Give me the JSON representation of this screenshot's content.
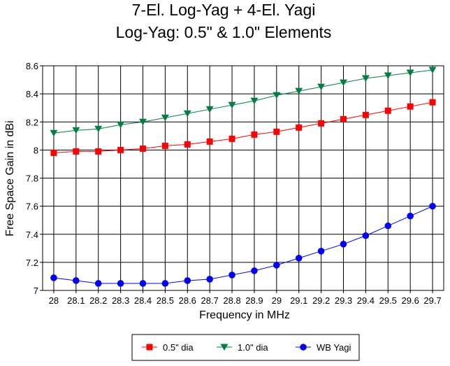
{
  "chart_data": {
    "type": "line",
    "title": "7-El. Log-Yag + 4-El. Yagi",
    "subtitle": "Log-Yag:  0.5\" & 1.0\" Elements",
    "xlabel": "Frequency in MHz",
    "ylabel": "Free Space Gain in dBi",
    "ylim": [
      7,
      8.6
    ],
    "y_ticks": [
      "7",
      "7.2",
      "7.4",
      "7.6",
      "7.8",
      "8",
      "8.2",
      "8.4",
      "8.6"
    ],
    "categories": [
      "28",
      "28.1",
      "28.2",
      "28.3",
      "28.4",
      "28.5",
      "28.6",
      "28.7",
      "28.8",
      "28.9",
      "29",
      "29.1",
      "29.2",
      "29.3",
      "29.4",
      "29.5",
      "29.6",
      "29.7"
    ],
    "grid": true,
    "legend_position": "bottom",
    "series": [
      {
        "name": "0.5\" dia",
        "color": "#ff0000",
        "marker": "square",
        "values": [
          7.98,
          7.99,
          7.99,
          8.0,
          8.01,
          8.03,
          8.04,
          8.06,
          8.08,
          8.11,
          8.13,
          8.16,
          8.19,
          8.22,
          8.25,
          8.28,
          8.31,
          8.34
        ]
      },
      {
        "name": "1.0\" dia",
        "color": "#008040",
        "marker": "triangle-down",
        "values": [
          8.12,
          8.14,
          8.15,
          8.18,
          8.2,
          8.23,
          8.26,
          8.29,
          8.32,
          8.35,
          8.39,
          8.42,
          8.45,
          8.48,
          8.51,
          8.53,
          8.55,
          8.57
        ]
      },
      {
        "name": "WB Yagi",
        "color": "#0000ff",
        "marker": "circle",
        "values": [
          7.09,
          7.07,
          7.05,
          7.05,
          7.05,
          7.05,
          7.07,
          7.08,
          7.11,
          7.14,
          7.18,
          7.23,
          7.28,
          7.33,
          7.39,
          7.46,
          7.53,
          7.6
        ]
      }
    ]
  }
}
